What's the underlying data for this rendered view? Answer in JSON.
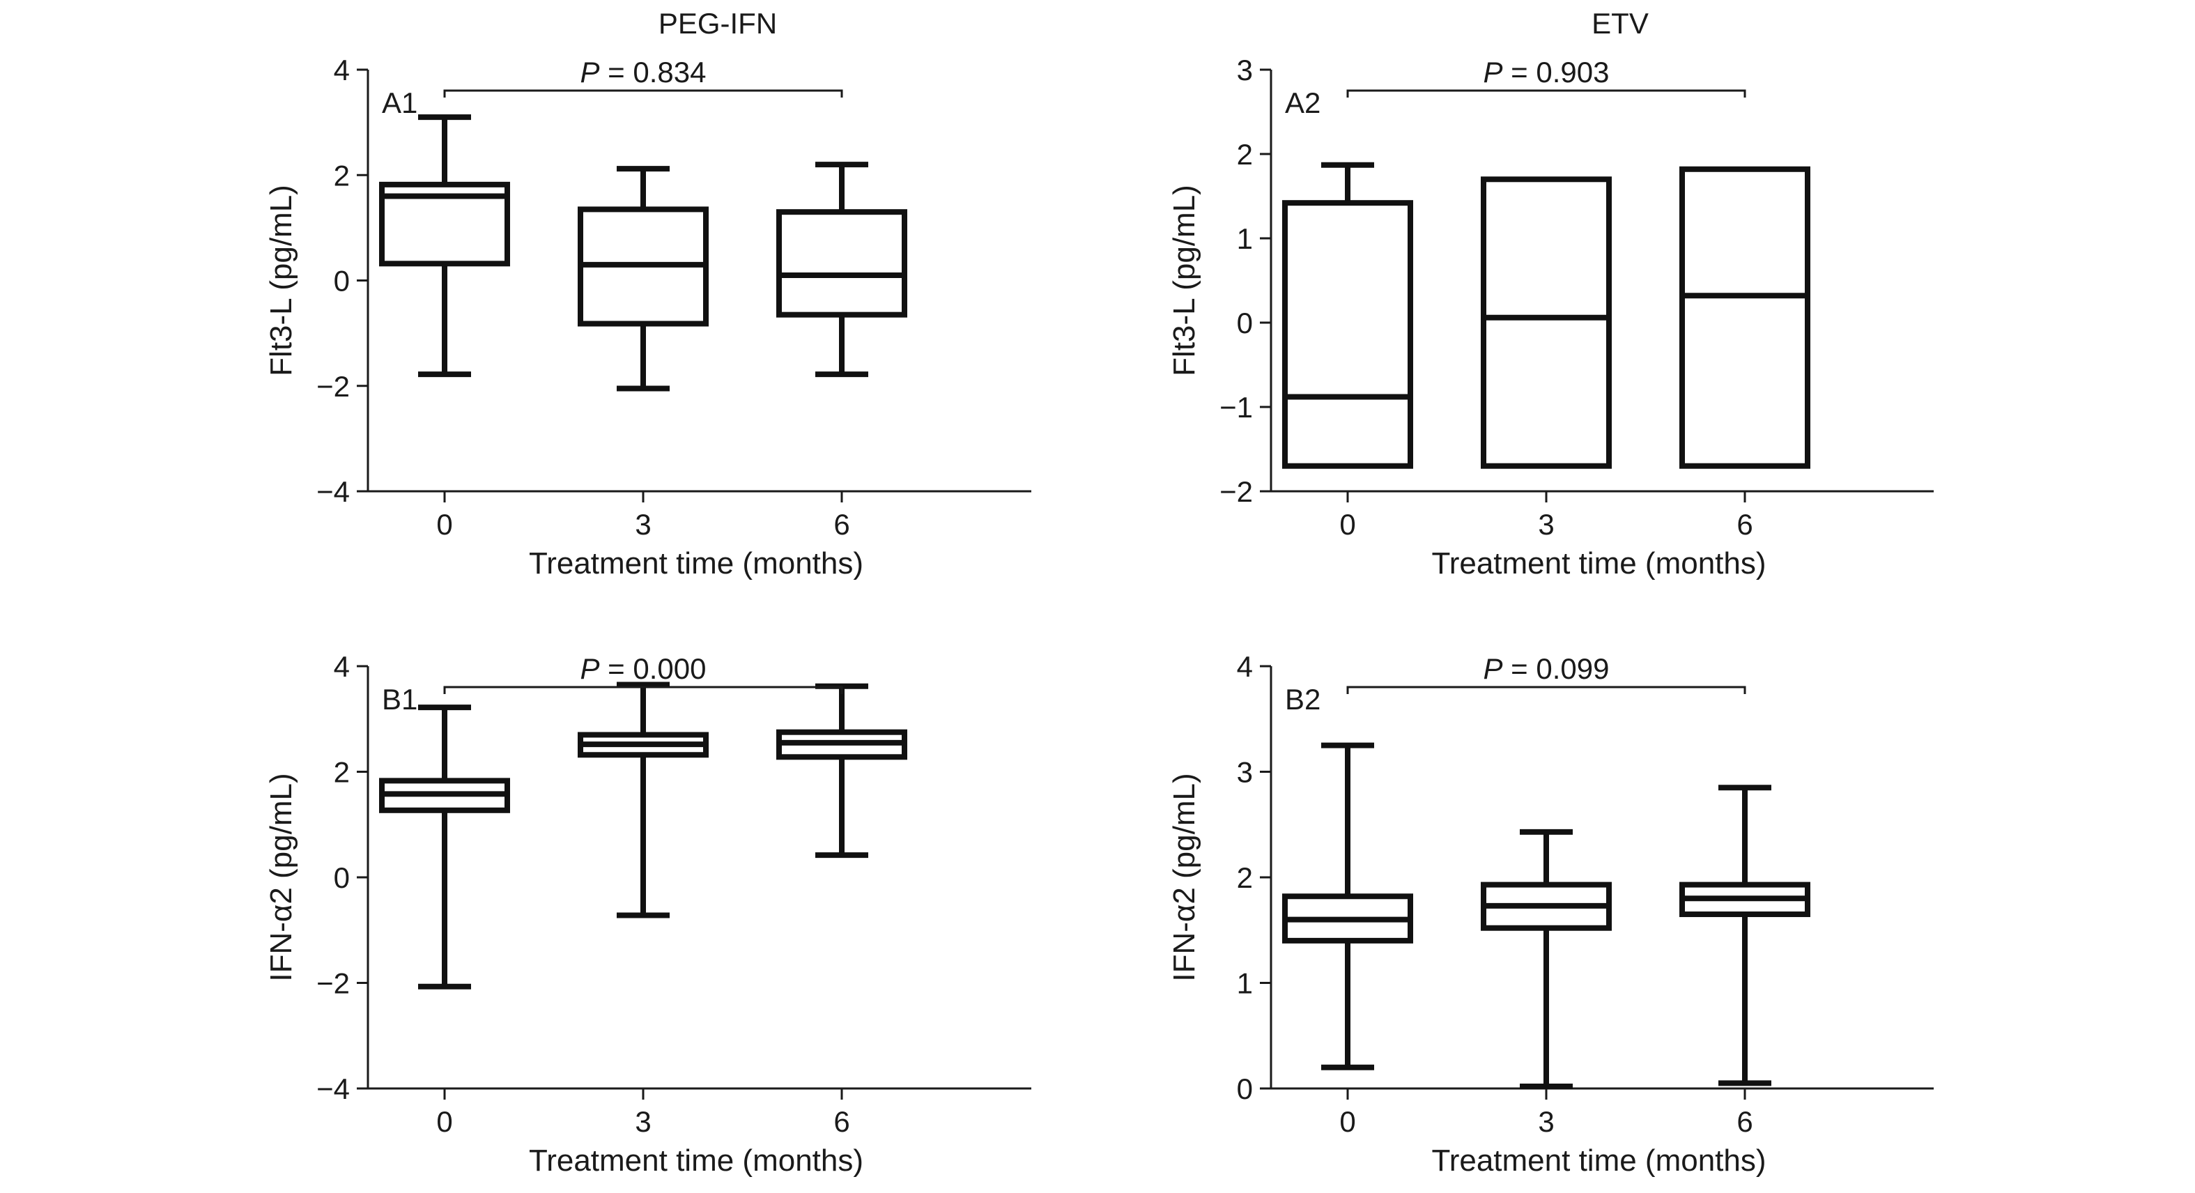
{
  "column_titles": [
    "PEG-IFN",
    "ETV"
  ],
  "chart_data": [
    {
      "type": "boxplot",
      "panel_label": "A1",
      "ylabel": "Flt3-L (pg/mL)",
      "xlabel": "Treatment time (months)",
      "categories": [
        "0",
        "3",
        "6"
      ],
      "ylim": [
        -4,
        4
      ],
      "yticks": [
        -4,
        -2,
        0,
        2,
        4
      ],
      "ytick_labels": [
        "−4",
        "−2",
        "0",
        "2",
        "4"
      ],
      "boxes": [
        {
          "min": -1.78,
          "q1": 0.32,
          "median": 1.6,
          "q3": 1.82,
          "max": 3.1
        },
        {
          "min": -2.05,
          "q1": -0.82,
          "median": 0.3,
          "q3": 1.35,
          "max": 2.12
        },
        {
          "min": -1.78,
          "q1": -0.65,
          "median": 0.1,
          "q3": 1.3,
          "max": 2.2
        }
      ],
      "p_value_label": "P",
      "p_value_text": " = 0.834"
    },
    {
      "type": "boxplot",
      "panel_label": "A2",
      "ylabel": "Flt3-L (pg/mL)",
      "xlabel": "Treatment time (months)",
      "categories": [
        "0",
        "3",
        "6"
      ],
      "ylim": [
        -2,
        3
      ],
      "yticks": [
        -2,
        -1,
        0,
        1,
        2,
        3
      ],
      "ytick_labels": [
        "−2",
        "−1",
        "0",
        "1",
        "2",
        "3"
      ],
      "boxes": [
        {
          "min": -1.7,
          "q1": -1.7,
          "median": -0.88,
          "q3": 1.42,
          "max": 1.87
        },
        {
          "min": -1.7,
          "q1": -1.7,
          "median": 0.06,
          "q3": 1.7,
          "max": 1.7
        },
        {
          "min": -1.7,
          "q1": -1.7,
          "median": 0.32,
          "q3": 1.82,
          "max": 1.82
        }
      ],
      "p_value_label": "P",
      "p_value_text": " = 0.903"
    },
    {
      "type": "boxplot",
      "panel_label": "B1",
      "ylabel": "IFN-α2 (pg/mL)",
      "xlabel": "Treatment time (months)",
      "categories": [
        "0",
        "3",
        "6"
      ],
      "ylim": [
        -4,
        4
      ],
      "yticks": [
        -4,
        -2,
        0,
        2,
        4
      ],
      "ytick_labels": [
        "−4",
        "−2",
        "0",
        "2",
        "4"
      ],
      "boxes": [
        {
          "min": -2.07,
          "q1": 1.27,
          "median": 1.58,
          "q3": 1.83,
          "max": 3.22
        },
        {
          "min": -0.72,
          "q1": 2.32,
          "median": 2.52,
          "q3": 2.7,
          "max": 3.65
        },
        {
          "min": 0.42,
          "q1": 2.28,
          "median": 2.55,
          "q3": 2.75,
          "max": 3.62
        }
      ],
      "p_value_label": "P",
      "p_value_text": " = 0.000"
    },
    {
      "type": "boxplot",
      "panel_label": "B2",
      "ylabel": "IFN-α2 (pg/mL)",
      "xlabel": "Treatment time (months)",
      "categories": [
        "0",
        "3",
        "6"
      ],
      "ylim": [
        0,
        4
      ],
      "yticks": [
        0,
        1,
        2,
        3,
        4
      ],
      "ytick_labels": [
        "0",
        "1",
        "2",
        "3",
        "4"
      ],
      "boxes": [
        {
          "min": 0.2,
          "q1": 1.4,
          "median": 1.6,
          "q3": 1.82,
          "max": 3.25
        },
        {
          "min": 0.02,
          "q1": 1.52,
          "median": 1.73,
          "q3": 1.93,
          "max": 2.43
        },
        {
          "min": 0.05,
          "q1": 1.65,
          "median": 1.8,
          "q3": 1.93,
          "max": 2.85
        }
      ],
      "p_value_label": "P",
      "p_value_text": " = 0.099"
    }
  ]
}
